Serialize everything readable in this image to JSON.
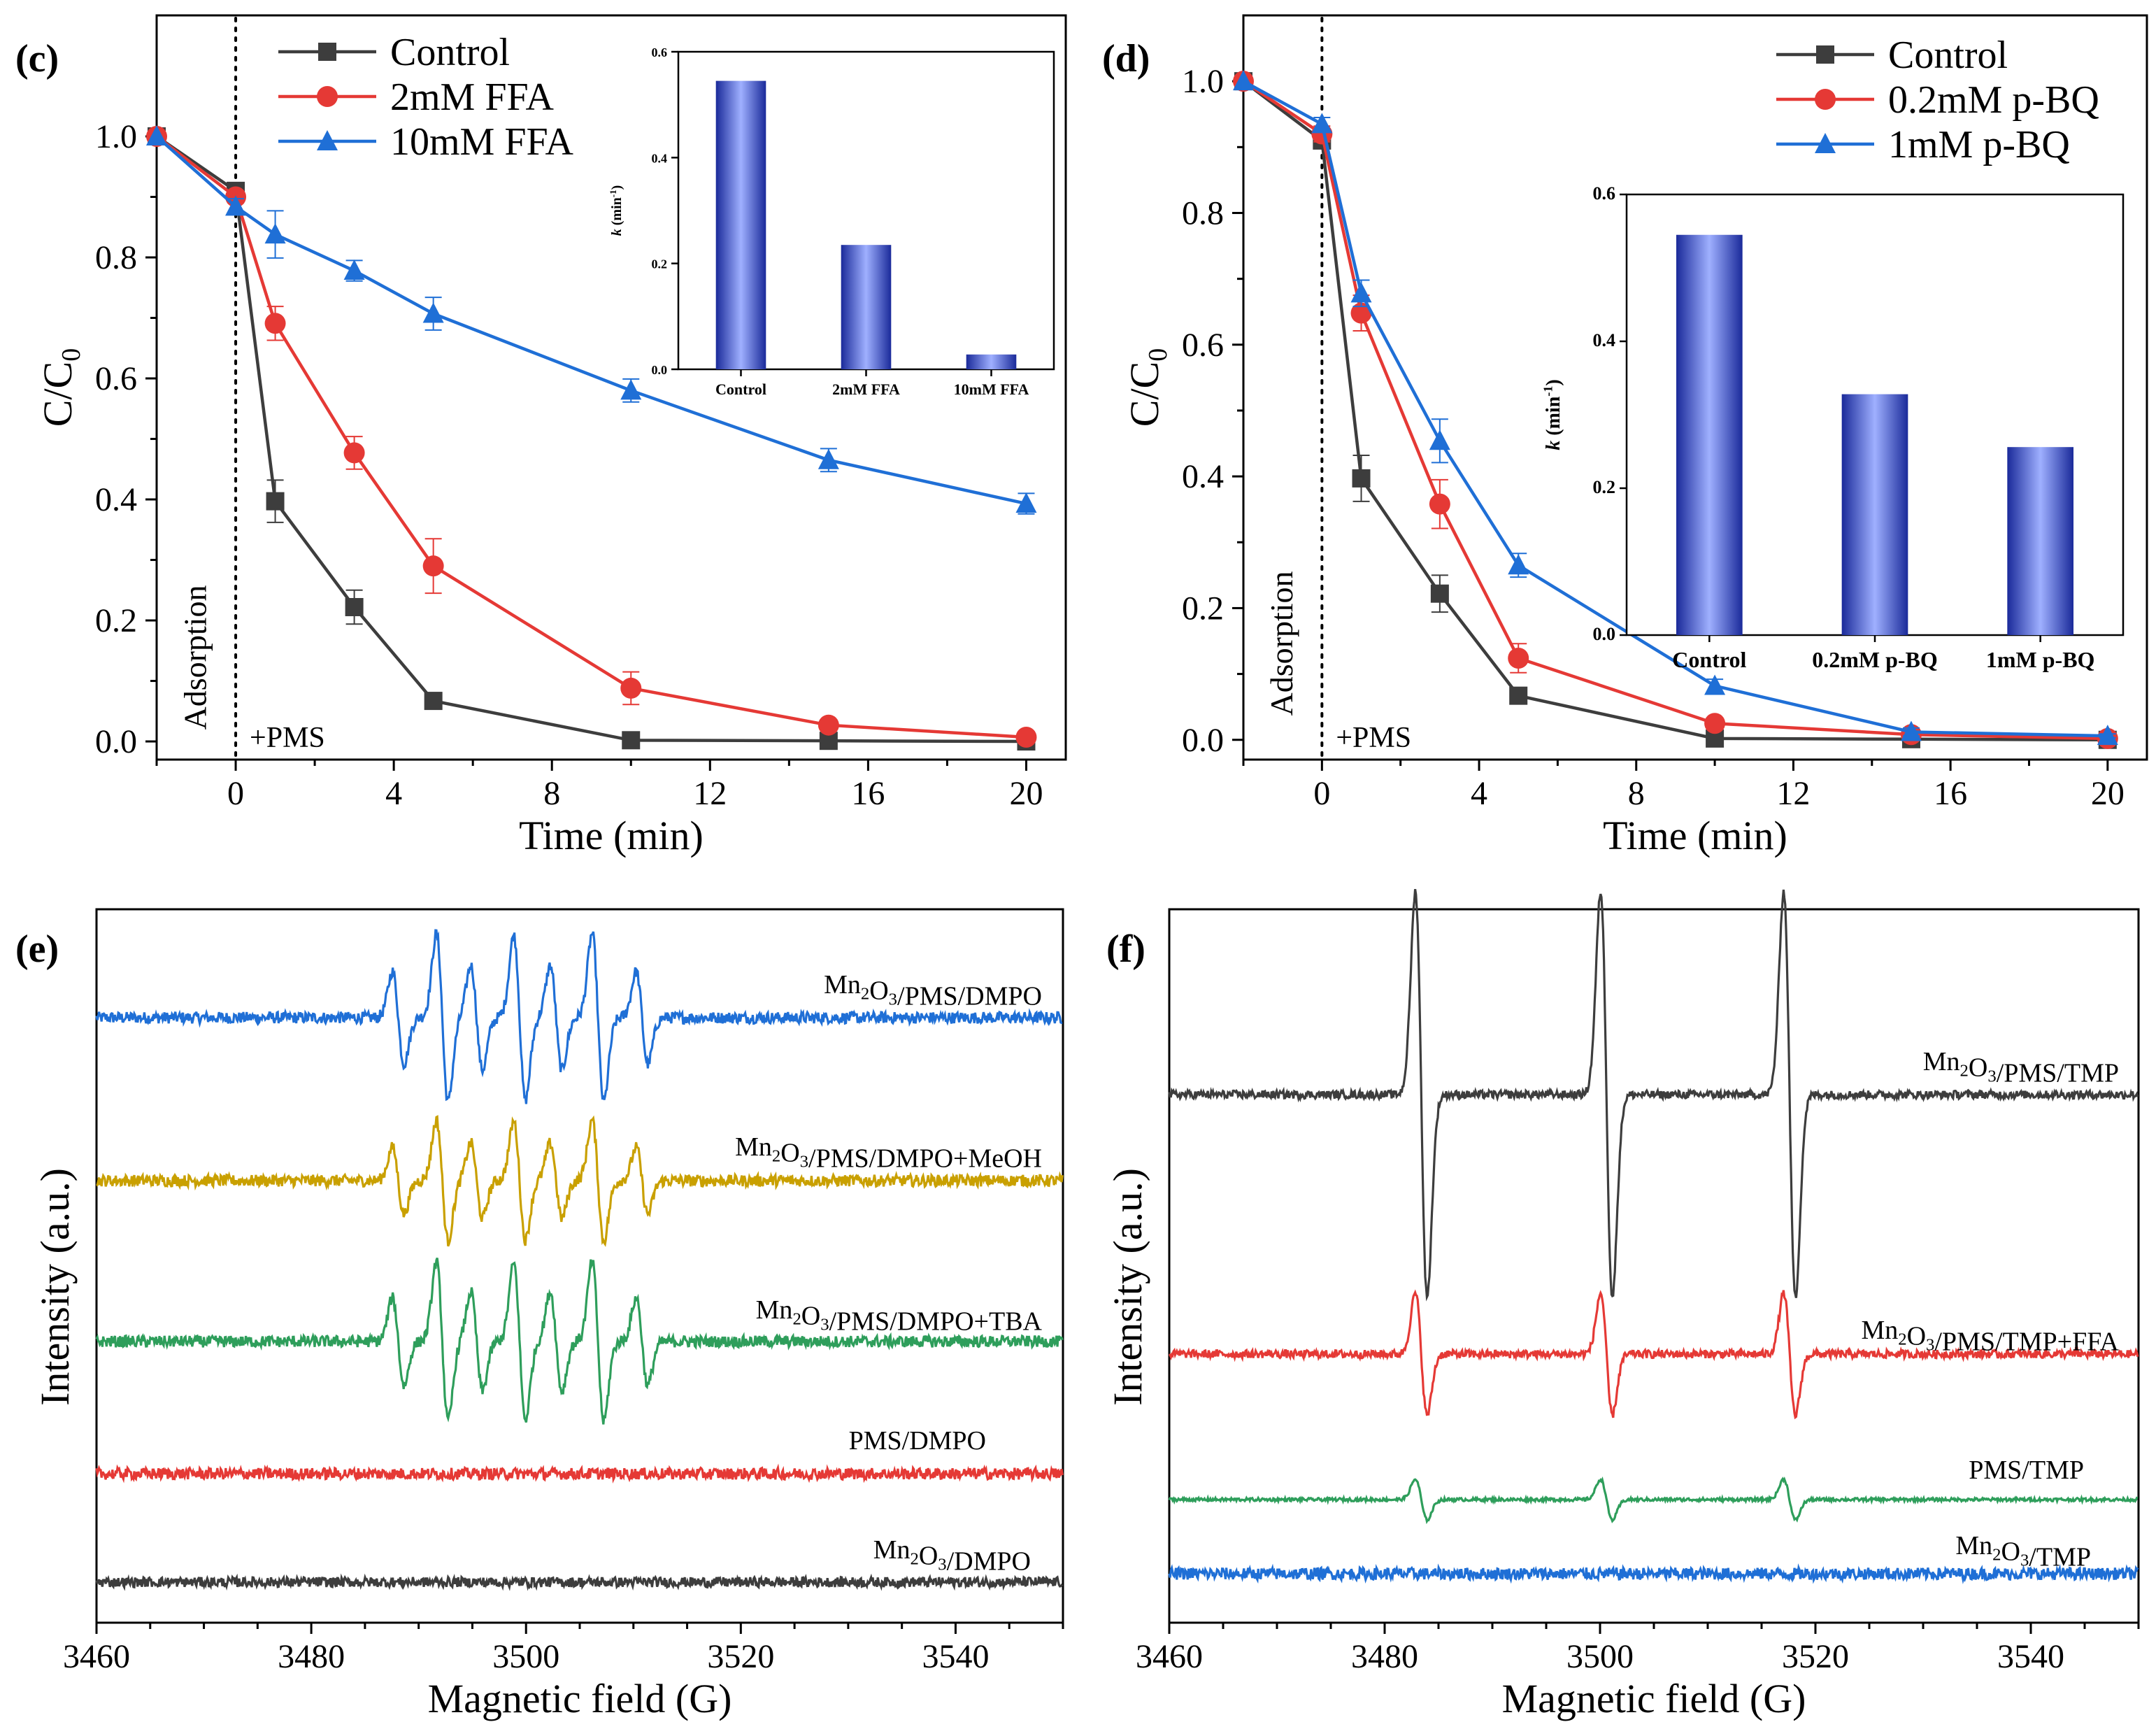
{
  "colors": {
    "control": "#3d3d3d",
    "ffa2": "#e53935",
    "ffa10": "#1f6fd6",
    "dmpo": "#1f6fd6",
    "meoh": "#c9a000",
    "tba": "#2e9e5b",
    "pms": "#e53935",
    "mn": "#3d3d3d",
    "tmp": "#3d3d3d",
    "tmpffa": "#e53935",
    "pmstmp": "#2e9e5b",
    "mntmp": "#1f6fd6",
    "bar_dark": "#1a2a9a",
    "bar_light": "#9fb0ff"
  },
  "chart_data": [
    {
      "panel": "(c)",
      "type": "line",
      "xlabel": "Time (min)",
      "ylabel": "C/C0",
      "xlim": [
        -2,
        21
      ],
      "ylim": [
        -0.03,
        1.2
      ],
      "xticks": [
        "0",
        "4",
        "8",
        "12",
        "16",
        "20"
      ],
      "yticks": [
        "0.0",
        "0.2",
        "0.4",
        "0.6",
        "0.8",
        "1.0"
      ],
      "annotations": {
        "adsorption": "Adsorption",
        "pms": "+PMS"
      },
      "x": [
        -2,
        0,
        1,
        3,
        5,
        10,
        15,
        20
      ],
      "series": [
        {
          "name": "Control",
          "marker": "square",
          "color_key": "control",
          "values": [
            1.0,
            0.91,
            0.397,
            0.222,
            0.067,
            0.002,
            0.001,
            0.0
          ],
          "errors": [
            0,
            0.01,
            0.035,
            0.028,
            0.006,
            0.004,
            0.003,
            0.002
          ]
        },
        {
          "name": "2mM FFA",
          "marker": "circle",
          "color_key": "ffa2",
          "values": [
            1.0,
            0.9,
            0.691,
            0.477,
            0.29,
            0.088,
            0.027,
            0.007
          ],
          "errors": [
            0,
            0.01,
            0.028,
            0.027,
            0.045,
            0.027,
            0.009,
            0.006
          ]
        },
        {
          "name": "10mM FFA",
          "marker": "triangle",
          "color_key": "ffa10",
          "values": [
            1.0,
            0.884,
            0.838,
            0.778,
            0.707,
            0.58,
            0.465,
            0.393
          ],
          "errors": [
            0,
            0.013,
            0.039,
            0.017,
            0.027,
            0.019,
            0.019,
            0.017
          ]
        }
      ],
      "inset": {
        "type": "bar",
        "ylabel": "k (min⁻¹)",
        "ylabel_k": "k",
        "ylabel_rest": " (min",
        "ylabel_sup": "-1",
        "ylabel_end": ")",
        "ylim": [
          0,
          0.6
        ],
        "yticks": [
          "0.0",
          "0.2",
          "0.4",
          "0.6"
        ],
        "categories": [
          "Control",
          "2mM FFA",
          "10mM FFA"
        ],
        "values": [
          0.545,
          0.235,
          0.028
        ]
      }
    },
    {
      "panel": "(d)",
      "type": "line",
      "xlabel": "Time (min)",
      "ylabel": "C/C0",
      "xlim": [
        -2,
        21
      ],
      "ylim": [
        -0.03,
        1.1
      ],
      "xticks": [
        "0",
        "4",
        "8",
        "12",
        "16",
        "20"
      ],
      "yticks": [
        "0.0",
        "0.2",
        "0.4",
        "0.6",
        "0.8",
        "1.0"
      ],
      "annotations": {
        "adsorption": "Adsorption",
        "pms": "+PMS"
      },
      "x": [
        -2,
        0,
        1,
        3,
        5,
        10,
        15,
        20
      ],
      "series": [
        {
          "name": "Control",
          "marker": "square",
          "color_key": "control",
          "values": [
            1.0,
            0.91,
            0.397,
            0.222,
            0.067,
            0.002,
            0.001,
            0.0
          ],
          "errors": [
            0,
            0.01,
            0.035,
            0.028,
            0.006,
            0.004,
            0.003,
            0.002
          ]
        },
        {
          "name": "0.2mM p-BQ",
          "marker": "circle",
          "color_key": "ffa2",
          "values": [
            1.0,
            0.92,
            0.648,
            0.358,
            0.124,
            0.025,
            0.008,
            0.002
          ],
          "errors": [
            0,
            0.012,
            0.027,
            0.037,
            0.022,
            0.008,
            0.004,
            0.002
          ]
        },
        {
          "name": "1mM p-BQ",
          "marker": "triangle",
          "color_key": "ffa10",
          "values": [
            1.0,
            0.935,
            0.678,
            0.454,
            0.265,
            0.082,
            0.012,
            0.006
          ],
          "errors": [
            0,
            0.01,
            0.02,
            0.033,
            0.018,
            0.01,
            0.006,
            0.003
          ]
        }
      ],
      "inset": {
        "type": "bar",
        "ylabel": "k (min⁻¹)",
        "ylabel_k": "k",
        "ylabel_rest": " (min",
        "ylabel_sup": "-1",
        "ylabel_end": ")",
        "ylim": [
          0,
          0.6
        ],
        "yticks": [
          "0.0",
          "0.2",
          "0.4",
          "0.6"
        ],
        "categories": [
          "Control",
          "0.2mM p-BQ",
          "1mM p-BQ"
        ],
        "values": [
          0.545,
          0.328,
          0.256
        ]
      }
    },
    {
      "panel": "(e)",
      "type": "line",
      "xlabel": "Magnetic field (G)",
      "ylabel": "Intensity (a.u.)",
      "xlim": [
        3460,
        3550
      ],
      "xticks": [
        "3460",
        "3480",
        "3500",
        "3520",
        "3540"
      ],
      "pattern": "DMPO adducts: 7-line spectrum",
      "peak_positions_G": [
        3488.1,
        3492.2,
        3495.4,
        3499.4,
        3502.8,
        3506.7,
        3510.8
      ],
      "peak_heights": [
        0.55,
        1.0,
        0.62,
        0.98,
        0.62,
        1.0,
        0.55
      ],
      "series": [
        {
          "name": "Mn₂O₃/PMS/DMPO",
          "label_parts": [
            "Mn",
            "2",
            "O",
            "3",
            "/PMS/DMPO"
          ],
          "color_key": "dmpo",
          "amplitude": 1.0,
          "noise": 0.07,
          "baseline_offset": 0
        },
        {
          "name": "Mn₂O₃/PMS/DMPO+MeOH",
          "label_parts": [
            "Mn",
            "2",
            "O",
            "3",
            "/PMS/DMPO+MeOH"
          ],
          "color_key": "meoh",
          "amplitude": 0.72,
          "noise": 0.07,
          "baseline_offset": 0
        },
        {
          "name": "Mn₂O₃/PMS/DMPO+TBA",
          "label_parts": [
            "Mn",
            "2",
            "O",
            "3",
            "/PMS/DMPO+TBA"
          ],
          "color_key": "tba",
          "amplitude": 0.95,
          "noise": 0.07,
          "baseline_offset": 0
        },
        {
          "name": "PMS/DMPO",
          "label_parts": [
            "PMS/DMPO",
            "",
            "",
            "",
            ""
          ],
          "color_key": "pms",
          "amplitude": 0.0,
          "noise": 0.07,
          "baseline_offset": 0
        },
        {
          "name": "Mn₂O₃/DMPO",
          "label_parts": [
            "Mn",
            "2",
            "O",
            "3",
            "/DMPO"
          ],
          "color_key": "mn",
          "amplitude": 0.0,
          "noise": 0.06,
          "baseline_offset": 0
        }
      ]
    },
    {
      "panel": "(f)",
      "type": "line",
      "xlabel": "Magnetic field (G)",
      "ylabel": "Intensity (a.u.)",
      "xlim": [
        3460,
        3550
      ],
      "xticks": [
        "3460",
        "3480",
        "3500",
        "3520",
        "3540"
      ],
      "pattern": "TEMP adduct: 3-line spectrum",
      "peak_positions_G": [
        3483.4,
        3500.6,
        3517.6
      ],
      "peak_heights": [
        1.0,
        1.0,
        1.0
      ],
      "series": [
        {
          "name": "Mn₂O₃/PMS/TMP",
          "label_parts": [
            "Mn",
            "2",
            "O",
            "3",
            "/PMS/TMP"
          ],
          "color_key": "tmp",
          "amplitude": 1.0,
          "noise": 0.02,
          "baseline_offset": 0
        },
        {
          "name": "Mn₂O₃/PMS/TMP+FFA",
          "label_parts": [
            "Mn",
            "2",
            "O",
            "3",
            "/PMS/TMP+FFA"
          ],
          "color_key": "tmpffa",
          "amplitude": 0.3,
          "noise": 0.02,
          "baseline_offset": 0
        },
        {
          "name": "PMS/TMP",
          "label_parts": [
            "PMS/TMP",
            "",
            "",
            "",
            ""
          ],
          "color_key": "pmstmp",
          "amplitude": 0.1,
          "noise": 0.008,
          "baseline_offset": 0
        },
        {
          "name": "Mn₂O₃/TMP",
          "label_parts": [
            "Mn",
            "2",
            "O",
            "3",
            "/TMP"
          ],
          "color_key": "mntmp",
          "amplitude": 0.0,
          "noise": 0.03,
          "baseline_offset": 0
        }
      ]
    }
  ]
}
